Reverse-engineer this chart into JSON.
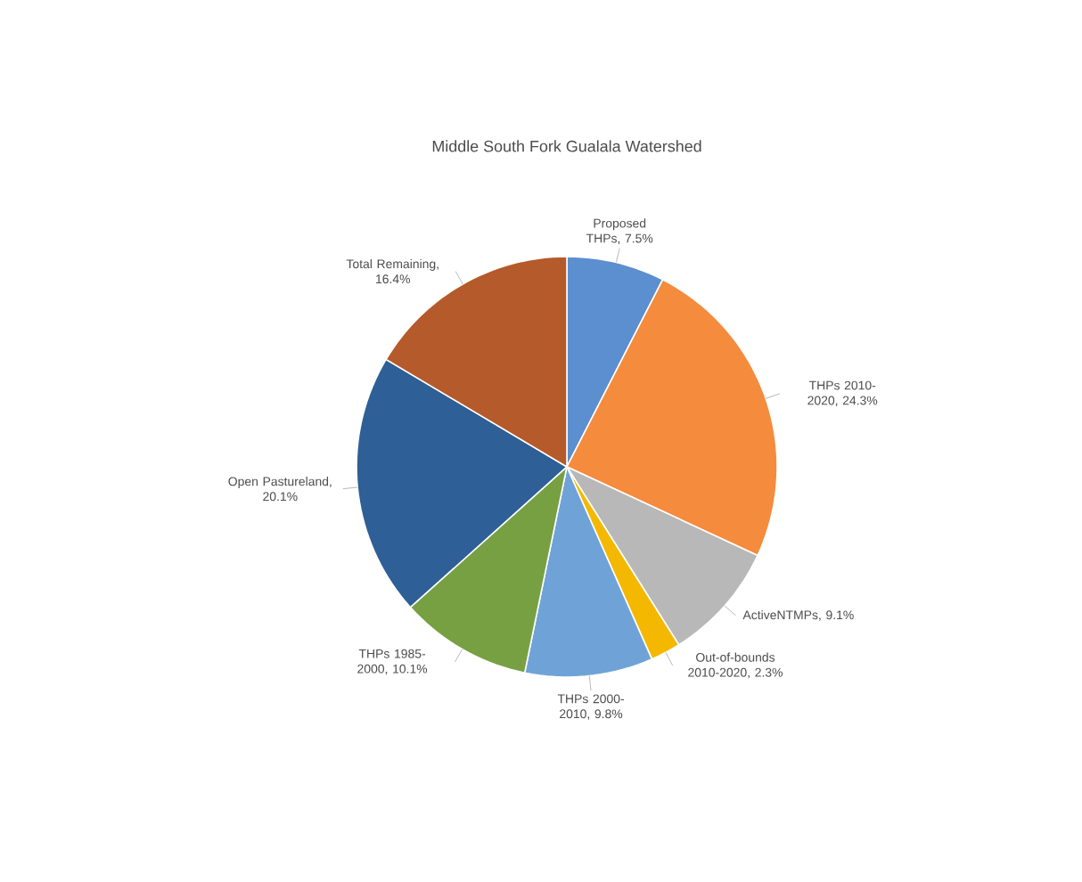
{
  "chart_data": {
    "type": "pie",
    "title": "Middle South Fork Gualala Watershed",
    "categories": [
      "Proposed THPs, 7.5%",
      "THPs 2010-2020, 24.3%",
      "ActiveNTMPs, 9.1%",
      "Out-of-bounds 2010-2020, 2.3%",
      "THPs 2000-2010, 9.8%",
      "THPs 1985-2000, 10.1%",
      "Open Pastureland, 20.1%",
      "Total Remaining, 16.4%"
    ],
    "values": [
      7.5,
      24.3,
      9.1,
      2.3,
      9.8,
      10.1,
      20.1,
      16.4
    ],
    "colors": [
      "#5b8fd0",
      "#f58b3c",
      "#b8b8b8",
      "#f5b800",
      "#6fa3d8",
      "#77a043",
      "#2e5f96",
      "#b55a2a"
    ]
  }
}
